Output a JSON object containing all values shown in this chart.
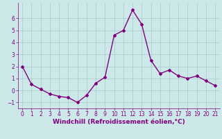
{
  "x": [
    0,
    1,
    2,
    3,
    4,
    5,
    6,
    7,
    8,
    9,
    10,
    11,
    12,
    13,
    14,
    15,
    16,
    17,
    18,
    19,
    20,
    21
  ],
  "y": [
    2.0,
    0.5,
    0.1,
    -0.3,
    -0.5,
    -0.6,
    -1.0,
    -0.4,
    0.6,
    1.1,
    4.6,
    5.0,
    6.7,
    5.5,
    2.5,
    1.4,
    1.7,
    1.2,
    1.0,
    1.2,
    0.8,
    0.4
  ],
  "line_color": "#800080",
  "marker": "D",
  "marker_size": 2.0,
  "linewidth": 1.0,
  "bg_color": "#cce8e8",
  "grid_color": "#aacccc",
  "xlabel": "Windchill (Refroidissement éolien,°C)",
  "xlabel_color": "#800080",
  "xlabel_fontsize": 6.5,
  "tick_color": "#800080",
  "tick_fontsize": 5.5,
  "xlim": [
    -0.5,
    21.5
  ],
  "ylim": [
    -1.5,
    7.3
  ],
  "yticks": [
    -1,
    0,
    1,
    2,
    3,
    4,
    5,
    6
  ],
  "xticks": [
    0,
    1,
    2,
    3,
    4,
    5,
    6,
    7,
    8,
    9,
    10,
    11,
    12,
    13,
    14,
    15,
    16,
    17,
    18,
    19,
    20,
    21
  ]
}
